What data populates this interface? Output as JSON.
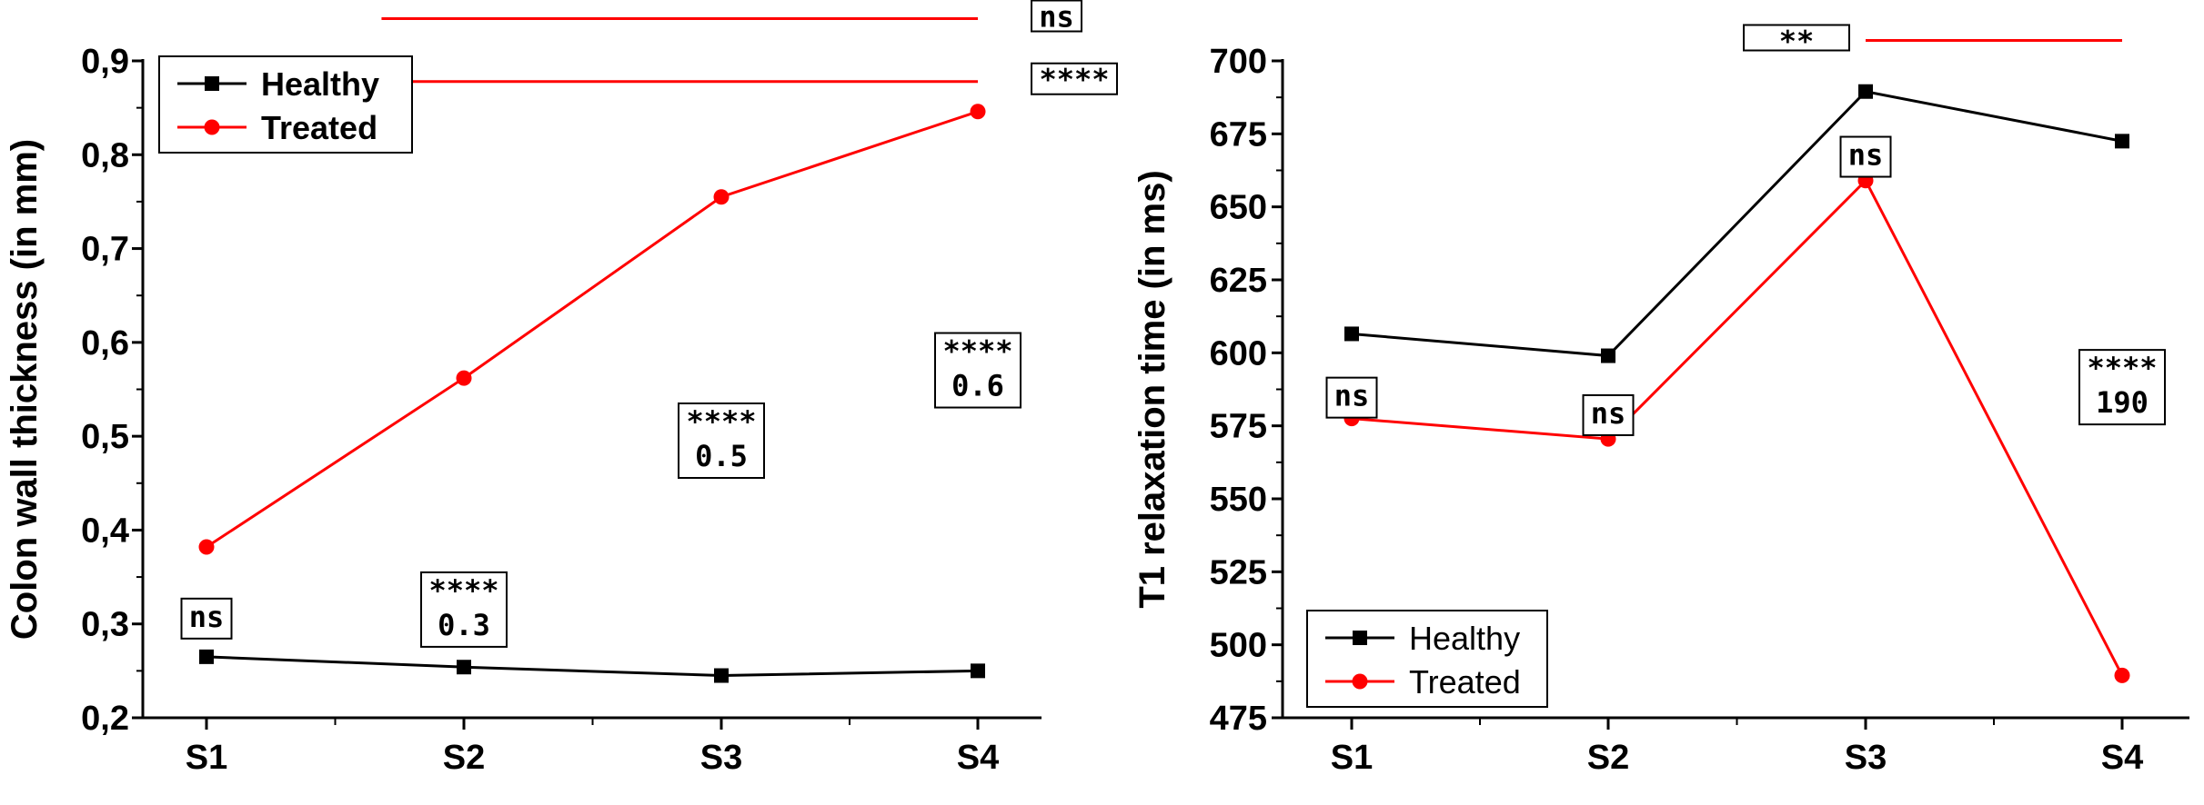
{
  "colors": {
    "healthy": "#000000",
    "treated": "#ff0000",
    "axis": "#000000"
  },
  "chart_data": [
    {
      "type": "line",
      "title": "",
      "xlabel": "",
      "ylabel": "Colon wall thickness (in mm)",
      "categories": [
        "S1",
        "S2",
        "S3",
        "S4"
      ],
      "ylim": [
        0.2,
        0.9
      ],
      "yticks": [
        "0,2",
        "0,3",
        "0,4",
        "0,5",
        "0,6",
        "0,7",
        "0,8",
        "0,9"
      ],
      "ytick_values": [
        0.2,
        0.3,
        0.4,
        0.5,
        0.6,
        0.7,
        0.8,
        0.9
      ],
      "legend": {
        "position": "top-left",
        "entries": [
          "Healthy",
          "Treated"
        ]
      },
      "series": [
        {
          "name": "Healthy",
          "marker": "square",
          "values": [
            0.265,
            0.254,
            0.245,
            0.25
          ]
        },
        {
          "name": "Treated",
          "marker": "circle",
          "values": [
            0.382,
            0.562,
            0.755,
            0.846
          ]
        }
      ],
      "annotations": [
        {
          "category": "S1",
          "lines": [
            "ns"
          ],
          "y": 0.327
        },
        {
          "category": "S2",
          "lines": [
            "****",
            "0.3"
          ],
          "y": 0.355
        },
        {
          "category": "S3",
          "lines": [
            "****",
            "0.5"
          ],
          "y": 0.535
        },
        {
          "category": "S4",
          "lines": [
            "****",
            "0.6"
          ],
          "y": 0.61
        }
      ],
      "brackets": [
        {
          "from": 0.68,
          "to": 3.0,
          "y": 0.945,
          "label": "ns"
        },
        {
          "from": -0.05,
          "to": 3.0,
          "y": 0.878,
          "label": "****"
        }
      ]
    },
    {
      "type": "line",
      "title": "",
      "xlabel": "",
      "ylabel": "T1 relaxation time (in ms)",
      "categories": [
        "S1",
        "S2",
        "S3",
        "S4"
      ],
      "ylim": [
        475,
        700
      ],
      "yticks": [
        "475",
        "500",
        "525",
        "550",
        "575",
        "600",
        "625",
        "650",
        "675",
        "700"
      ],
      "ytick_values": [
        475,
        500,
        525,
        550,
        575,
        600,
        625,
        650,
        675,
        700
      ],
      "legend": {
        "position": "bottom-left",
        "entries": [
          "Healthy",
          "Treated"
        ]
      },
      "series": [
        {
          "name": "Healthy",
          "marker": "square",
          "values": [
            606.5,
            599,
            689.5,
            672.5
          ]
        },
        {
          "name": "Treated",
          "marker": "circle",
          "values": [
            577.5,
            570.5,
            659,
            489.5
          ]
        }
      ],
      "annotations": [
        {
          "category": "S1",
          "lines": [
            "ns"
          ],
          "y": 591.5
        },
        {
          "category": "S2",
          "lines": [
            "ns"
          ],
          "y": 585.5
        },
        {
          "category": "S3",
          "lines": [
            "ns"
          ],
          "y": 674
        },
        {
          "category": "S4",
          "lines": [
            "****",
            "190"
          ],
          "y": 601
        }
      ],
      "brackets": [
        {
          "from": 2.0,
          "to": 3.0,
          "y": 707,
          "label": "**"
        }
      ]
    }
  ]
}
